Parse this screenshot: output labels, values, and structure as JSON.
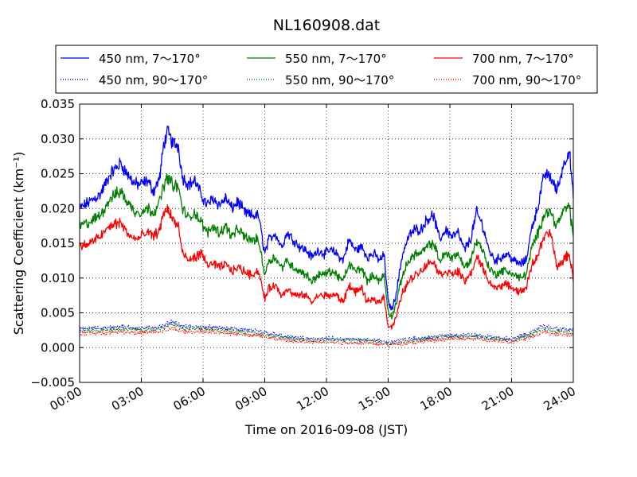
{
  "chart_data": {
    "type": "line",
    "title": "NL160908.dat",
    "xlabel": "Time on 2016-09-08 (JST)",
    "ylabel": "Scattering Coefficient (km⁻¹)",
    "xlim": [
      0,
      24
    ],
    "ylim": [
      -0.005,
      0.035
    ],
    "x_ticks": [
      0,
      3,
      6,
      9,
      12,
      15,
      18,
      21,
      24
    ],
    "x_tick_labels": [
      "00:00",
      "03:00",
      "06:00",
      "09:00",
      "12:00",
      "15:00",
      "18:00",
      "21:00",
      "24:00"
    ],
    "y_ticks": [
      -0.005,
      0,
      0.005,
      0.01,
      0.015,
      0.02,
      0.025,
      0.03,
      0.035
    ],
    "y_tick_labels": [
      "−0.005",
      "0.000",
      "0.005",
      "0.010",
      "0.015",
      "0.020",
      "0.025",
      "0.030",
      "0.035"
    ],
    "grid": true,
    "legend_position": "top",
    "series": [
      {
        "name": "450 nm, 7～170°",
        "color": "#0000ff",
        "style": "solid",
        "x": [
          0,
          0.5,
          1,
          1.5,
          2,
          2.3,
          2.7,
          3,
          3.3,
          3.6,
          3.9,
          4.1,
          4.3,
          4.5,
          4.8,
          5,
          5.3,
          5.6,
          5.9,
          6.2,
          6.5,
          6.8,
          7.1,
          7.4,
          7.7,
          8,
          8.3,
          8.7,
          9,
          9.2,
          9.5,
          9.8,
          10.1,
          10.4,
          10.7,
          11,
          11.3,
          11.6,
          11.9,
          12.2,
          12.5,
          12.8,
          13.1,
          13.4,
          13.7,
          14,
          14.3,
          14.6,
          14.8,
          15,
          15.2,
          15.4,
          15.7,
          16,
          16.3,
          16.6,
          16.9,
          17.2,
          17.5,
          17.8,
          18.1,
          18.4,
          18.7,
          19,
          19.3,
          19.6,
          19.9,
          20.2,
          20.5,
          20.8,
          21.1,
          21.4,
          21.7,
          22,
          22.3,
          22.6,
          22.9,
          23.2,
          23.5,
          23.8,
          24
        ],
        "values": [
          0.02,
          0.021,
          0.022,
          0.025,
          0.0265,
          0.025,
          0.0235,
          0.0235,
          0.024,
          0.0225,
          0.0245,
          0.0295,
          0.031,
          0.0295,
          0.029,
          0.0245,
          0.0235,
          0.024,
          0.022,
          0.0205,
          0.0215,
          0.0205,
          0.0215,
          0.02,
          0.021,
          0.0195,
          0.019,
          0.019,
          0.0135,
          0.0155,
          0.0165,
          0.0145,
          0.0165,
          0.0155,
          0.0145,
          0.014,
          0.013,
          0.014,
          0.0135,
          0.014,
          0.0135,
          0.0125,
          0.0155,
          0.014,
          0.0145,
          0.013,
          0.0135,
          0.0125,
          0.0135,
          0.0065,
          0.0055,
          0.008,
          0.0135,
          0.016,
          0.017,
          0.017,
          0.0185,
          0.019,
          0.0155,
          0.017,
          0.016,
          0.0165,
          0.014,
          0.0155,
          0.0195,
          0.0175,
          0.014,
          0.0125,
          0.013,
          0.0135,
          0.0125,
          0.012,
          0.0125,
          0.0175,
          0.0205,
          0.025,
          0.0245,
          0.0225,
          0.026,
          0.0285,
          0.0215
        ]
      },
      {
        "name": "450 nm, 90～170°",
        "color": "#0000ff",
        "style": "dotted",
        "x": [
          0,
          1,
          2,
          3,
          4,
          4.5,
          5,
          6,
          7,
          8,
          9,
          10,
          11,
          12,
          13,
          14,
          15,
          16,
          17,
          18,
          19,
          20,
          21,
          22,
          22.5,
          23,
          24
        ],
        "values": [
          0.0027,
          0.0028,
          0.003,
          0.0028,
          0.003,
          0.0038,
          0.003,
          0.003,
          0.0028,
          0.0026,
          0.0022,
          0.0015,
          0.0013,
          0.0013,
          0.0012,
          0.0012,
          0.0008,
          0.0012,
          0.0015,
          0.0018,
          0.0018,
          0.0015,
          0.0012,
          0.0022,
          0.0032,
          0.0028,
          0.0025
        ]
      },
      {
        "name": "550 nm, 7～170°",
        "color": "#008000",
        "style": "solid",
        "x": [
          0,
          0.5,
          1,
          1.5,
          2,
          2.3,
          2.7,
          3,
          3.3,
          3.6,
          3.9,
          4.1,
          4.3,
          4.5,
          4.8,
          5,
          5.3,
          5.6,
          5.9,
          6.2,
          6.5,
          6.8,
          7.1,
          7.4,
          7.7,
          8,
          8.3,
          8.7,
          9,
          9.2,
          9.5,
          9.8,
          10.1,
          10.4,
          10.7,
          11,
          11.3,
          11.6,
          11.9,
          12.2,
          12.5,
          12.8,
          13.1,
          13.4,
          13.7,
          14,
          14.3,
          14.6,
          14.8,
          15,
          15.2,
          15.4,
          15.7,
          16,
          16.3,
          16.6,
          16.9,
          17.2,
          17.5,
          17.8,
          18.1,
          18.4,
          18.7,
          19,
          19.3,
          19.6,
          19.9,
          20.2,
          20.5,
          20.8,
          21.1,
          21.4,
          21.7,
          22,
          22.3,
          22.6,
          22.9,
          23.2,
          23.5,
          23.8,
          24
        ],
        "values": [
          0.0175,
          0.018,
          0.019,
          0.0215,
          0.0225,
          0.021,
          0.0195,
          0.0195,
          0.02,
          0.0195,
          0.021,
          0.0235,
          0.0245,
          0.0235,
          0.023,
          0.02,
          0.0185,
          0.0195,
          0.018,
          0.0165,
          0.0175,
          0.0165,
          0.0175,
          0.016,
          0.017,
          0.016,
          0.0155,
          0.0155,
          0.0105,
          0.0125,
          0.013,
          0.0115,
          0.0125,
          0.0115,
          0.011,
          0.0105,
          0.0095,
          0.0105,
          0.0105,
          0.011,
          0.0105,
          0.0095,
          0.012,
          0.011,
          0.0115,
          0.0095,
          0.0105,
          0.0095,
          0.0105,
          0.005,
          0.0045,
          0.0065,
          0.0105,
          0.0125,
          0.0135,
          0.0135,
          0.0145,
          0.015,
          0.0125,
          0.0135,
          0.013,
          0.0135,
          0.0115,
          0.0125,
          0.0155,
          0.014,
          0.0115,
          0.0105,
          0.011,
          0.011,
          0.0105,
          0.01,
          0.0105,
          0.0145,
          0.0165,
          0.0195,
          0.0195,
          0.0175,
          0.0195,
          0.0205,
          0.016
        ]
      },
      {
        "name": "550 nm, 90～170°",
        "color": "#008000",
        "style": "dotted",
        "x": [
          0,
          1,
          2,
          3,
          4,
          4.5,
          5,
          6,
          7,
          8,
          9,
          10,
          11,
          12,
          13,
          14,
          15,
          16,
          17,
          18,
          19,
          20,
          21,
          22,
          22.5,
          23,
          24
        ],
        "values": [
          0.0024,
          0.0025,
          0.0027,
          0.0025,
          0.0027,
          0.0033,
          0.0027,
          0.0027,
          0.0025,
          0.0023,
          0.0019,
          0.0013,
          0.0011,
          0.0011,
          0.001,
          0.001,
          0.0006,
          0.001,
          0.0013,
          0.0016,
          0.0016,
          0.0013,
          0.001,
          0.0019,
          0.0027,
          0.0024,
          0.0022
        ]
      },
      {
        "name": "700 nm, 7～170°",
        "color": "#ff0000",
        "style": "solid",
        "x": [
          0,
          0.5,
          1,
          1.5,
          2,
          2.3,
          2.7,
          3,
          3.3,
          3.6,
          3.9,
          4.1,
          4.3,
          4.5,
          4.8,
          5,
          5.3,
          5.6,
          5.9,
          6.2,
          6.5,
          6.8,
          7.1,
          7.4,
          7.7,
          8,
          8.3,
          8.7,
          9,
          9.2,
          9.5,
          9.8,
          10.1,
          10.4,
          10.7,
          11,
          11.3,
          11.6,
          11.9,
          12.2,
          12.5,
          12.8,
          13.1,
          13.4,
          13.7,
          14,
          14.3,
          14.6,
          14.8,
          15,
          15.2,
          15.4,
          15.7,
          16,
          16.3,
          16.6,
          16.9,
          17.2,
          17.5,
          17.8,
          18.1,
          18.4,
          18.7,
          19,
          19.3,
          19.6,
          19.9,
          20.2,
          20.5,
          20.8,
          21.1,
          21.4,
          21.7,
          22,
          22.3,
          22.6,
          22.9,
          23.2,
          23.5,
          23.8,
          24
        ],
        "values": [
          0.0145,
          0.015,
          0.016,
          0.0175,
          0.018,
          0.0165,
          0.0155,
          0.016,
          0.0165,
          0.016,
          0.017,
          0.0195,
          0.02,
          0.0185,
          0.0175,
          0.0135,
          0.0125,
          0.013,
          0.0135,
          0.012,
          0.012,
          0.0115,
          0.012,
          0.011,
          0.0115,
          0.011,
          0.0105,
          0.011,
          0.007,
          0.0085,
          0.009,
          0.0075,
          0.0085,
          0.0075,
          0.0075,
          0.0075,
          0.0065,
          0.0075,
          0.0075,
          0.0075,
          0.0075,
          0.0065,
          0.009,
          0.008,
          0.0085,
          0.0065,
          0.007,
          0.0065,
          0.0075,
          0.003,
          0.003,
          0.0045,
          0.008,
          0.0095,
          0.0105,
          0.011,
          0.012,
          0.0125,
          0.0105,
          0.011,
          0.0105,
          0.011,
          0.0095,
          0.0105,
          0.013,
          0.0115,
          0.0095,
          0.0085,
          0.009,
          0.009,
          0.0085,
          0.008,
          0.0085,
          0.012,
          0.0135,
          0.016,
          0.0165,
          0.0115,
          0.0125,
          0.0135,
          0.01
        ]
      },
      {
        "name": "700 nm, 90～170°",
        "color": "#ff0000",
        "style": "dotted",
        "x": [
          0,
          1,
          2,
          3,
          4,
          4.5,
          5,
          6,
          7,
          8,
          9,
          10,
          11,
          12,
          13,
          14,
          15,
          16,
          17,
          18,
          19,
          20,
          21,
          22,
          22.5,
          23,
          24
        ],
        "values": [
          0.002,
          0.0021,
          0.0023,
          0.0021,
          0.0023,
          0.0028,
          0.0023,
          0.0023,
          0.0021,
          0.0019,
          0.0016,
          0.001,
          0.0008,
          0.0008,
          0.0007,
          0.0007,
          0.0004,
          0.0007,
          0.001,
          0.0013,
          0.0013,
          0.001,
          0.0008,
          0.0016,
          0.0022,
          0.002,
          0.0018
        ]
      }
    ]
  }
}
